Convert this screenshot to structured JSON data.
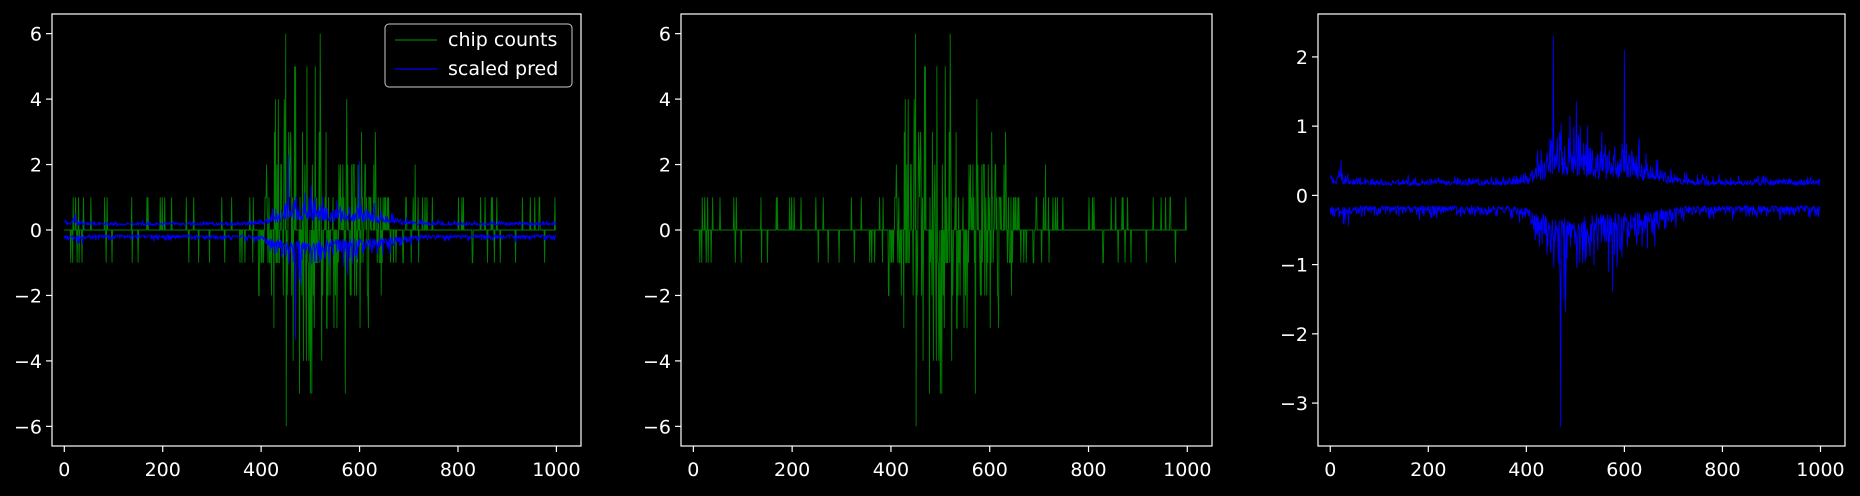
{
  "figure": {
    "background": "#000000",
    "axes_color": "#ffffff",
    "green": "#008000",
    "blue": "#0000ff"
  },
  "chart_data": [
    {
      "type": "line",
      "title": "",
      "xlabel": "",
      "ylabel": "",
      "xlim": [
        -25,
        1050
      ],
      "ylim": [
        -6.6,
        6.6
      ],
      "x_ticks": [
        0,
        200,
        400,
        600,
        800,
        1000
      ],
      "y_ticks": [
        -6,
        -4,
        -2,
        0,
        2,
        4,
        6
      ],
      "tick_labels_x": [
        "0",
        "200",
        "400",
        "600",
        "800",
        "1000"
      ],
      "tick_labels_y": [
        "−6",
        "−4",
        "−2",
        "0",
        "2",
        "4",
        "6"
      ],
      "grid": false,
      "legend": {
        "placement": "upper right",
        "entries": [
          "chip counts",
          "scaled pred"
        ]
      },
      "series": [
        {
          "name": "chip counts",
          "color": "#008000",
          "x_range": [
            0,
            1000
          ],
          "approx_min": -6,
          "approx_max": 6,
          "kind": "integer counts concentrated near x=400–650"
        },
        {
          "name": "scaled pred",
          "color": "#0000ff",
          "x_range": [
            0,
            1000
          ],
          "approx_min": -3.4,
          "approx_max": 2.3,
          "kind": "two bands above and below zero, widening near x=400–650"
        }
      ]
    },
    {
      "type": "line",
      "title": "",
      "xlabel": "",
      "ylabel": "",
      "xlim": [
        -25,
        1050
      ],
      "ylim": [
        -6.6,
        6.6
      ],
      "x_ticks": [
        0,
        200,
        400,
        600,
        800,
        1000
      ],
      "y_ticks": [
        -6,
        -4,
        -2,
        0,
        2,
        4,
        6
      ],
      "tick_labels_x": [
        "0",
        "200",
        "400",
        "600",
        "800",
        "1000"
      ],
      "tick_labels_y": [
        "−6",
        "−4",
        "−2",
        "0",
        "2",
        "4",
        "6"
      ],
      "grid": false,
      "series": [
        {
          "color": "#008000",
          "x_range": [
            0,
            1000
          ],
          "approx_min": -6,
          "approx_max": 6,
          "kind": "integer counts concentrated near x=400–650"
        }
      ]
    },
    {
      "type": "line",
      "title": "",
      "xlabel": "",
      "ylabel": "",
      "xlim": [
        -25,
        1050
      ],
      "ylim": [
        -3.62,
        2.62
      ],
      "x_ticks": [
        0,
        200,
        400,
        600,
        800,
        1000
      ],
      "y_ticks": [
        -3,
        -2,
        -1,
        0,
        1,
        2
      ],
      "tick_labels_x": [
        "0",
        "200",
        "400",
        "600",
        "800",
        "1000"
      ],
      "tick_labels_y": [
        "−3",
        "−2",
        "−1",
        "0",
        "1",
        "2"
      ],
      "grid": false,
      "series": [
        {
          "color": "#0000ff",
          "x_range": [
            0,
            1000
          ],
          "approx_min": -3.4,
          "approx_max": 2.3,
          "kind": "upper band ≈0.1–2.3 and lower band ≈-0.1 to -3.4, largest near x=450–650"
        }
      ]
    }
  ]
}
